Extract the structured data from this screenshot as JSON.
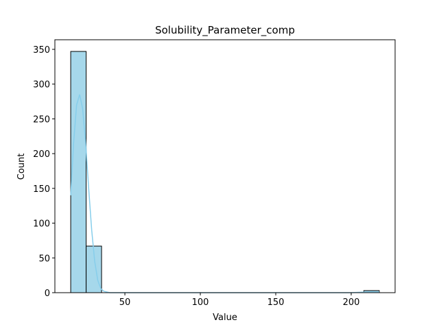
{
  "chart_data": {
    "type": "histogram",
    "title": "Solubility_Parameter_comp",
    "xlabel": "Value",
    "ylabel": "Count",
    "bins": [
      14.1,
      24.33,
      34.55,
      44.78,
      55.0,
      65.23,
      75.45,
      85.68,
      95.9,
      106.13,
      116.35,
      126.58,
      136.8,
      147.03,
      157.25,
      167.48,
      177.7,
      187.93,
      198.15,
      208.38,
      218.6
    ],
    "counts": [
      347,
      67,
      0,
      0,
      0,
      0,
      0,
      0,
      0,
      0,
      0,
      0,
      0,
      0,
      0,
      0,
      0,
      0,
      0,
      3
    ],
    "color": "#a6d8eb",
    "kde": {
      "color": "#87ceeb",
      "x": [
        14.1,
        16,
        18,
        20,
        22,
        24,
        26,
        28,
        30,
        32,
        34,
        36,
        40,
        50,
        100,
        150,
        200,
        210,
        214,
        218.6
      ],
      "y": [
        140,
        215,
        270,
        285,
        265,
        215,
        150,
        90,
        45,
        18,
        6,
        2,
        0,
        0,
        0,
        0,
        0,
        1,
        1.5,
        1
      ]
    },
    "xlim": [
      3.6,
      229.1
    ],
    "ylim": [
      0,
      363.8
    ],
    "xticks": [
      50,
      100,
      150,
      200
    ],
    "yticks": [
      0,
      50,
      100,
      150,
      200,
      250,
      300,
      350
    ]
  }
}
